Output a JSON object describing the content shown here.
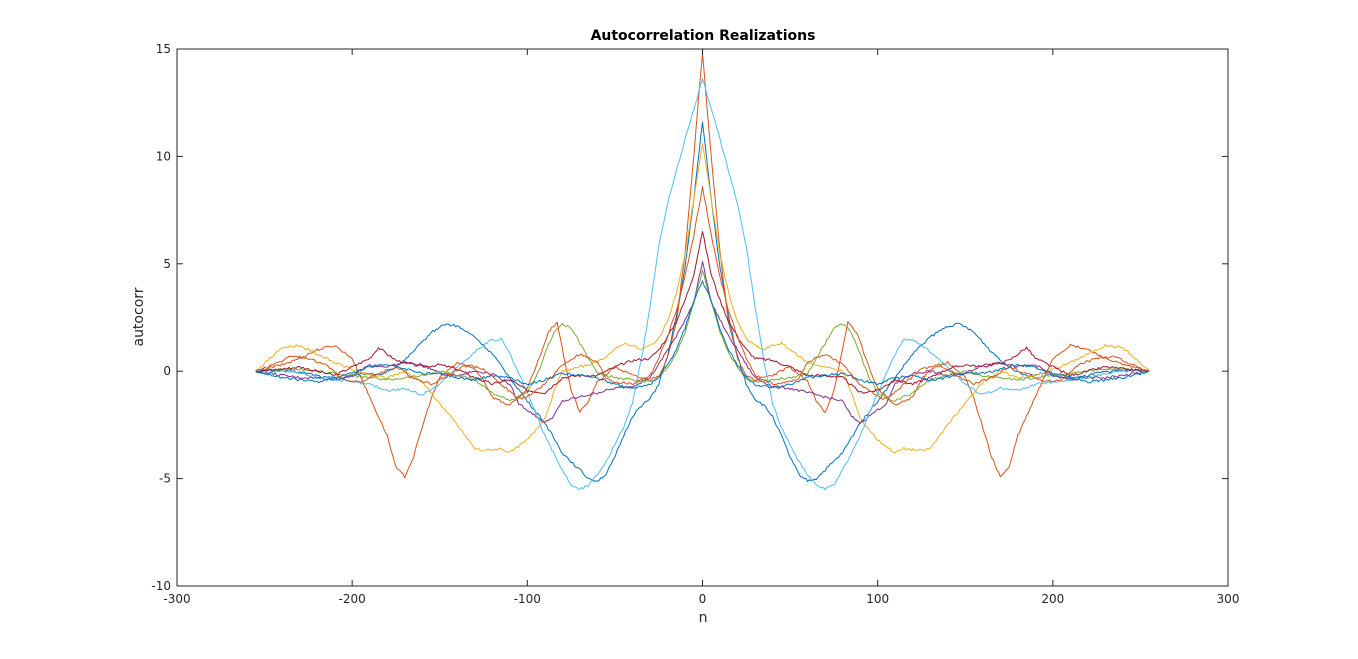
{
  "chart_data": {
    "type": "line",
    "title": "Autocorrelation Realizations",
    "xlabel": "n",
    "ylabel": "autocorr",
    "xlim": [
      -300,
      300
    ],
    "ylim": [
      -10,
      15
    ],
    "xticks": [
      -300,
      -200,
      -100,
      0,
      100,
      200,
      300
    ],
    "yticks": [
      -10,
      -5,
      0,
      5,
      10,
      15
    ],
    "grid": false,
    "box": true,
    "symmetric": true,
    "series": [
      {
        "color": "#0072BD",
        "points": [
          [
            0,
            11.6
          ],
          [
            5,
            8.0
          ],
          [
            10,
            4.8
          ],
          [
            15,
            2.5
          ],
          [
            20,
            0.7
          ],
          [
            25,
            -0.6
          ],
          [
            30,
            -1.3
          ],
          [
            35,
            -1.6
          ],
          [
            40,
            -2.1
          ],
          [
            45,
            -3.0
          ],
          [
            50,
            -4.0
          ],
          [
            55,
            -4.8
          ],
          [
            60,
            -5.1
          ],
          [
            65,
            -5.0
          ],
          [
            70,
            -4.6
          ],
          [
            80,
            -3.8
          ],
          [
            90,
            -2.4
          ],
          [
            100,
            -1.4
          ],
          [
            110,
            -0.3
          ],
          [
            120,
            0.8
          ],
          [
            130,
            1.6
          ],
          [
            140,
            2.1
          ],
          [
            147,
            2.2
          ],
          [
            155,
            1.8
          ],
          [
            165,
            0.9
          ],
          [
            175,
            0.2
          ],
          [
            185,
            -0.2
          ],
          [
            195,
            -0.1
          ],
          [
            205,
            -0.3
          ],
          [
            215,
            -0.3
          ],
          [
            225,
            -0.1
          ],
          [
            235,
            0.0
          ],
          [
            245,
            0.05
          ],
          [
            255,
            0
          ]
        ]
      },
      {
        "color": "#D95319",
        "points": [
          [
            0,
            14.8
          ],
          [
            5,
            10.0
          ],
          [
            10,
            5.5
          ],
          [
            15,
            2.2
          ],
          [
            20,
            0.6
          ],
          [
            25,
            -0.2
          ],
          [
            30,
            -0.4
          ],
          [
            40,
            -0.2
          ],
          [
            50,
            0.2
          ],
          [
            60,
            -0.5
          ],
          [
            65,
            -1.4
          ],
          [
            70,
            -1.9
          ],
          [
            75,
            -0.9
          ],
          [
            80,
            1.0
          ],
          [
            83,
            2.3
          ],
          [
            88,
            1.8
          ],
          [
            95,
            0.2
          ],
          [
            100,
            -0.8
          ],
          [
            110,
            -1.6
          ],
          [
            120,
            -1.2
          ],
          [
            125,
            -0.4
          ],
          [
            130,
            0.1
          ],
          [
            140,
            0.4
          ],
          [
            150,
            -0.3
          ],
          [
            155,
            -1.3
          ],
          [
            160,
            -2.6
          ],
          [
            165,
            -4.0
          ],
          [
            170,
            -4.9
          ],
          [
            175,
            -4.5
          ],
          [
            180,
            -3.0
          ],
          [
            190,
            -1.2
          ],
          [
            200,
            0.6
          ],
          [
            210,
            1.2
          ],
          [
            220,
            1.0
          ],
          [
            230,
            0.6
          ],
          [
            240,
            0.3
          ],
          [
            255,
            0
          ]
        ]
      },
      {
        "color": "#EDB120",
        "points": [
          [
            0,
            10.6
          ],
          [
            5,
            8.0
          ],
          [
            10,
            5.4
          ],
          [
            15,
            3.6
          ],
          [
            20,
            2.3
          ],
          [
            25,
            1.5
          ],
          [
            30,
            1.2
          ],
          [
            35,
            1.0
          ],
          [
            40,
            1.2
          ],
          [
            45,
            1.3
          ],
          [
            50,
            1.0
          ],
          [
            55,
            0.7
          ],
          [
            60,
            0.4
          ],
          [
            70,
            0.2
          ],
          [
            80,
            0.0
          ],
          [
            85,
            -1.0
          ],
          [
            90,
            -2.2
          ],
          [
            100,
            -3.2
          ],
          [
            110,
            -3.8
          ],
          [
            115,
            -3.6
          ],
          [
            125,
            -3.7
          ],
          [
            130,
            -3.6
          ],
          [
            140,
            -2.5
          ],
          [
            150,
            -1.5
          ],
          [
            160,
            -0.5
          ],
          [
            170,
            0.0
          ],
          [
            180,
            -0.3
          ],
          [
            190,
            -0.2
          ],
          [
            200,
            0.1
          ],
          [
            210,
            0.4
          ],
          [
            220,
            0.8
          ],
          [
            230,
            1.2
          ],
          [
            240,
            1.1
          ],
          [
            255,
            0
          ]
        ]
      },
      {
        "color": "#7E2F8E",
        "points": [
          [
            0,
            5.1
          ],
          [
            5,
            3.2
          ],
          [
            10,
            2.4
          ],
          [
            15,
            1.6
          ],
          [
            20,
            1.0
          ],
          [
            25,
            0.3
          ],
          [
            30,
            -0.3
          ],
          [
            40,
            -0.7
          ],
          [
            50,
            -0.8
          ],
          [
            60,
            -1.0
          ],
          [
            70,
            -1.2
          ],
          [
            80,
            -1.4
          ],
          [
            85,
            -2.1
          ],
          [
            90,
            -2.4
          ],
          [
            95,
            -2.1
          ],
          [
            100,
            -1.8
          ],
          [
            105,
            -1.5
          ],
          [
            110,
            -0.6
          ],
          [
            120,
            -0.1
          ],
          [
            130,
            0.0
          ],
          [
            140,
            -0.2
          ],
          [
            150,
            -0.1
          ],
          [
            160,
            0.3
          ],
          [
            170,
            0.4
          ],
          [
            180,
            0.2
          ],
          [
            190,
            0.3
          ],
          [
            200,
            -0.2
          ],
          [
            210,
            -0.4
          ],
          [
            220,
            -0.3
          ],
          [
            230,
            -0.3
          ],
          [
            240,
            -0.2
          ],
          [
            255,
            0
          ]
        ]
      },
      {
        "color": "#77AC30",
        "points": [
          [
            0,
            4.7
          ],
          [
            5,
            3.2
          ],
          [
            10,
            1.8
          ],
          [
            15,
            0.8
          ],
          [
            20,
            0.2
          ],
          [
            25,
            -0.3
          ],
          [
            30,
            -0.5
          ],
          [
            40,
            -0.4
          ],
          [
            50,
            -0.3
          ],
          [
            60,
            -0.1
          ],
          [
            65,
            0.6
          ],
          [
            70,
            1.3
          ],
          [
            75,
            2.0
          ],
          [
            80,
            2.2
          ],
          [
            85,
            1.8
          ],
          [
            90,
            0.8
          ],
          [
            95,
            -0.3
          ],
          [
            100,
            -1.0
          ],
          [
            110,
            -1.4
          ],
          [
            120,
            -1.0
          ],
          [
            130,
            -0.4
          ],
          [
            140,
            -0.2
          ],
          [
            150,
            0.0
          ],
          [
            160,
            -0.2
          ],
          [
            170,
            -0.3
          ],
          [
            180,
            -0.4
          ],
          [
            190,
            -0.3
          ],
          [
            200,
            -0.2
          ],
          [
            210,
            -0.1
          ],
          [
            220,
            0.0
          ],
          [
            230,
            0.1
          ],
          [
            240,
            0.1
          ],
          [
            255,
            0
          ]
        ]
      },
      {
        "color": "#4DBEEE",
        "points": [
          [
            0,
            13.6
          ],
          [
            5,
            12.2
          ],
          [
            10,
            10.8
          ],
          [
            15,
            9.3
          ],
          [
            20,
            7.8
          ],
          [
            25,
            5.8
          ],
          [
            30,
            3.0
          ],
          [
            35,
            0.5
          ],
          [
            40,
            -1.5
          ],
          [
            45,
            -2.6
          ],
          [
            50,
            -3.4
          ],
          [
            55,
            -4.2
          ],
          [
            60,
            -4.8
          ],
          [
            65,
            -5.3
          ],
          [
            70,
            -5.5
          ],
          [
            75,
            -5.3
          ],
          [
            80,
            -4.6
          ],
          [
            90,
            -3.0
          ],
          [
            100,
            -1.0
          ],
          [
            110,
            0.8
          ],
          [
            115,
            1.5
          ],
          [
            122,
            1.4
          ],
          [
            130,
            0.9
          ],
          [
            140,
            0.2
          ],
          [
            150,
            -0.6
          ],
          [
            160,
            -1.1
          ],
          [
            170,
            -0.8
          ],
          [
            180,
            -0.9
          ],
          [
            190,
            -0.6
          ],
          [
            200,
            -0.5
          ],
          [
            210,
            -0.4
          ],
          [
            220,
            -0.3
          ],
          [
            230,
            -0.1
          ],
          [
            240,
            0.0
          ],
          [
            255,
            0
          ]
        ]
      },
      {
        "color": "#A2142F",
        "points": [
          [
            0,
            6.5
          ],
          [
            5,
            4.5
          ],
          [
            10,
            3.3
          ],
          [
            15,
            2.3
          ],
          [
            20,
            1.6
          ],
          [
            25,
            1.0
          ],
          [
            30,
            0.6
          ],
          [
            40,
            0.5
          ],
          [
            50,
            0.2
          ],
          [
            60,
            -0.2
          ],
          [
            70,
            -0.2
          ],
          [
            80,
            -0.3
          ],
          [
            90,
            -1.0
          ],
          [
            100,
            -0.9
          ],
          [
            110,
            -0.4
          ],
          [
            120,
            -0.6
          ],
          [
            130,
            -0.3
          ],
          [
            140,
            0.1
          ],
          [
            150,
            0.3
          ],
          [
            160,
            0.2
          ],
          [
            170,
            0.4
          ],
          [
            175,
            0.5
          ],
          [
            180,
            0.8
          ],
          [
            185,
            1.1
          ],
          [
            190,
            0.6
          ],
          [
            200,
            0.2
          ],
          [
            210,
            -0.2
          ],
          [
            220,
            0.0
          ],
          [
            230,
            0.2
          ],
          [
            240,
            0.1
          ],
          [
            255,
            0
          ]
        ]
      },
      {
        "color": "#0072BD",
        "points": [
          [
            0,
            4.2
          ],
          [
            5,
            3.3
          ],
          [
            10,
            2.0
          ],
          [
            15,
            1.0
          ],
          [
            20,
            0.3
          ],
          [
            25,
            -0.3
          ],
          [
            30,
            -0.6
          ],
          [
            40,
            -0.8
          ],
          [
            50,
            -0.6
          ],
          [
            60,
            -0.3
          ],
          [
            70,
            -0.2
          ],
          [
            80,
            -0.1
          ],
          [
            90,
            -0.4
          ],
          [
            100,
            -0.6
          ],
          [
            110,
            -0.3
          ],
          [
            120,
            -0.2
          ],
          [
            130,
            -0.4
          ],
          [
            140,
            -0.3
          ],
          [
            150,
            -0.1
          ],
          [
            160,
            -0.1
          ],
          [
            170,
            0.1
          ],
          [
            180,
            0.3
          ],
          [
            190,
            0.2
          ],
          [
            200,
            -0.1
          ],
          [
            210,
            -0.3
          ],
          [
            220,
            -0.5
          ],
          [
            230,
            -0.4
          ],
          [
            240,
            -0.3
          ],
          [
            255,
            0
          ]
        ]
      },
      {
        "color": "#D95319",
        "points": [
          [
            0,
            8.6
          ],
          [
            5,
            6.3
          ],
          [
            10,
            4.4
          ],
          [
            15,
            2.8
          ],
          [
            20,
            1.6
          ],
          [
            25,
            0.6
          ],
          [
            30,
            -0.2
          ],
          [
            40,
            -0.6
          ],
          [
            50,
            -0.5
          ],
          [
            55,
            -0.3
          ],
          [
            60,
            0.4
          ],
          [
            70,
            0.8
          ],
          [
            80,
            0.3
          ],
          [
            90,
            -0.6
          ],
          [
            100,
            -1.2
          ],
          [
            105,
            -1.3
          ],
          [
            115,
            -0.6
          ],
          [
            125,
            0.1
          ],
          [
            135,
            0.3
          ],
          [
            145,
            -0.2
          ],
          [
            155,
            -0.6
          ],
          [
            165,
            -0.3
          ],
          [
            175,
            0.2
          ],
          [
            185,
            -0.1
          ],
          [
            195,
            -0.5
          ],
          [
            205,
            -0.4
          ],
          [
            215,
            0.3
          ],
          [
            225,
            0.6
          ],
          [
            235,
            0.7
          ],
          [
            245,
            0.3
          ],
          [
            255,
            0
          ]
        ]
      }
    ]
  }
}
